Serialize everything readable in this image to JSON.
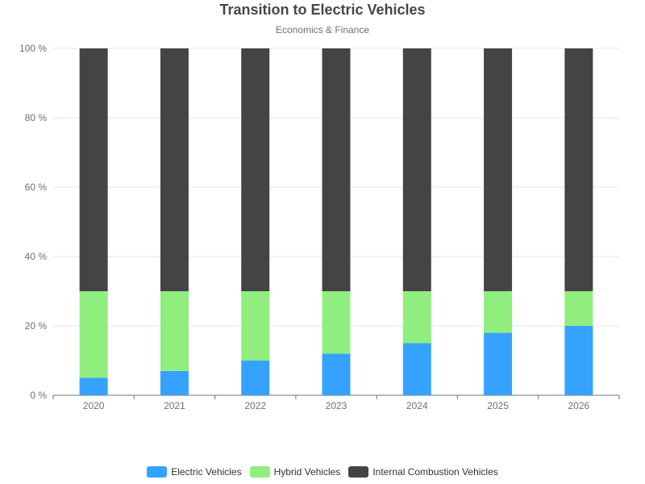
{
  "chart_data": {
    "type": "bar",
    "stacked": true,
    "title": "Transition to Electric Vehicles",
    "subtitle": "Economics & Finance",
    "categories": [
      "2020",
      "2021",
      "2022",
      "2023",
      "2024",
      "2025",
      "2026"
    ],
    "series": [
      {
        "name": "Electric Vehicles",
        "color": "#35a2ff",
        "values": [
          5,
          7,
          10,
          12,
          15,
          18,
          20
        ]
      },
      {
        "name": "Hybrid Vehicles",
        "color": "#90ee7e",
        "values": [
          25,
          23,
          20,
          18,
          15,
          12,
          10
        ]
      },
      {
        "name": "Internal Combustion Vehicles",
        "color": "#444447",
        "values": [
          70,
          70,
          70,
          70,
          70,
          70,
          70
        ]
      }
    ],
    "ylim": [
      0,
      100
    ],
    "yticks": [
      "0 %",
      "20 %",
      "40 %",
      "60 %",
      "80 %",
      "100 %"
    ],
    "grid": true,
    "legend_position": "bottom"
  }
}
